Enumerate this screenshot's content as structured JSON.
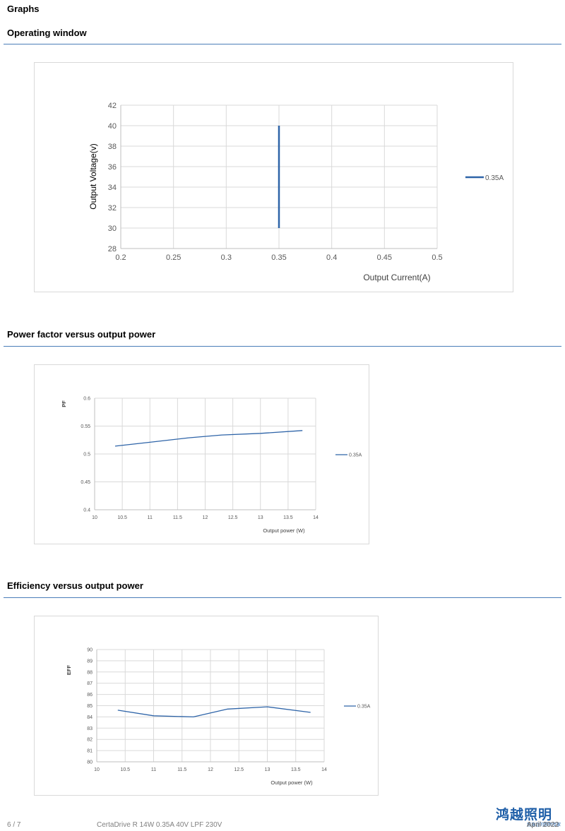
{
  "page": {
    "heading": "Graphs",
    "footer": {
      "page_number": "6 / 7",
      "product": "CertaDrive R 14W 0.35A 40V LPF 230V",
      "date": "April 2022",
      "logo_text": "鸿越照明",
      "logo_subtext": "您身边的照明专家"
    }
  },
  "sections": [
    {
      "title": "Operating window",
      "chart_data": {
        "type": "line",
        "title": "",
        "xlabel": "Output Current(A)",
        "ylabel": "Output Voltage(v)",
        "xlim": [
          0.2,
          0.5
        ],
        "ylim": [
          28,
          42
        ],
        "x_ticks": [
          "0.2",
          "0.25",
          "0.3",
          "0.35",
          "0.4",
          "0.45",
          "0.5"
        ],
        "y_ticks": [
          "28",
          "30",
          "32",
          "34",
          "36",
          "38",
          "40",
          "42"
        ],
        "grid": true,
        "legend_position": "right",
        "series": [
          {
            "name": "0.35A",
            "color": "#2e64a8",
            "x": [
              0.35,
              0.35
            ],
            "y": [
              30,
              40
            ]
          }
        ]
      }
    },
    {
      "title": "Power factor versus output power",
      "chart_data": {
        "type": "line",
        "title": "",
        "xlabel": "Output power (W)",
        "ylabel": "PF",
        "xlim": [
          10,
          14
        ],
        "ylim": [
          0.4,
          0.6
        ],
        "x_ticks": [
          "10",
          "10.5",
          "11",
          "11.5",
          "12",
          "12.5",
          "13",
          "13.5",
          "14"
        ],
        "y_ticks": [
          "0.4",
          "0.45",
          "0.5",
          "0.55",
          "0.6"
        ],
        "grid": true,
        "legend_position": "right",
        "series": [
          {
            "name": "0.35A",
            "color": "#2e64a8",
            "x": [
              10.37,
              11.0,
              11.7,
              12.3,
              13.0,
              13.76
            ],
            "y": [
              0.514,
              0.521,
              0.529,
              0.534,
              0.537,
              0.542
            ]
          }
        ]
      }
    },
    {
      "title": "Efficiency versus output power",
      "chart_data": {
        "type": "line",
        "title": "",
        "xlabel": "Output power (W)",
        "ylabel": "EFF",
        "xlim": [
          10,
          14
        ],
        "ylim": [
          80,
          90
        ],
        "x_ticks": [
          "10",
          "10.5",
          "11",
          "11.5",
          "12",
          "12.5",
          "13",
          "13.5",
          "14"
        ],
        "y_ticks": [
          "80",
          "81",
          "82",
          "83",
          "84",
          "85",
          "86",
          "87",
          "88",
          "89",
          "90"
        ],
        "grid": true,
        "legend_position": "right",
        "series": [
          {
            "name": "0.35A",
            "color": "#2e64a8",
            "x": [
              10.37,
              11.0,
              11.7,
              12.3,
              13.0,
              13.76
            ],
            "y": [
              84.6,
              84.1,
              84.0,
              84.7,
              84.9,
              84.4
            ]
          }
        ]
      }
    }
  ]
}
